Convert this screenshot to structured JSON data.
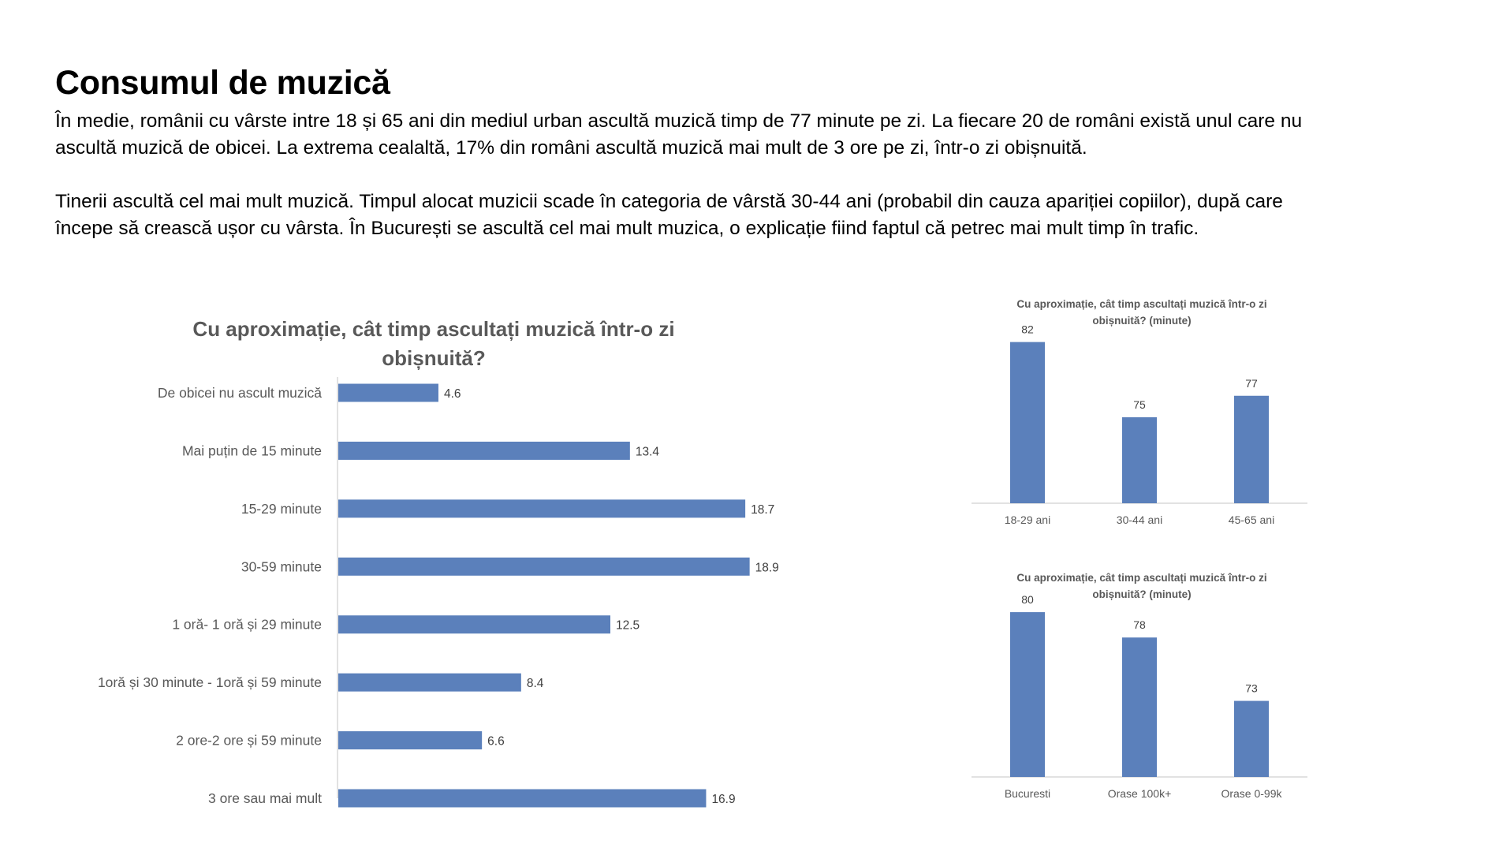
{
  "page": {
    "title": "Consumul de muzică",
    "paragraphs": [
      [
        "În medie, românii cu vârste intre 18 și 65 ani din mediul urban ascultă muzică timp de 77 minute pe zi. La fiecare 20 de români există unul care nu",
        "ascultă muzică de obicei. La extrema cealaltă, 17% din români ascultă muzică mai mult de 3 ore pe zi, într-o zi obișnuită."
      ],
      [
        "Tinerii ascultă cel mai mult muzică. Timpul alocat muzicii scade în categoria de vârstă 30-44 ani (probabil din cauza apariției copiilor), după care",
        "începe să crească ușor cu vârsta. În București se ascultă cel mai mult muzica, o explicație fiind faptul că petrec mai mult timp în trafic."
      ]
    ]
  },
  "colors": {
    "bar": "#5b80bb",
    "axis": "#d9d9d9",
    "title": "#595959"
  },
  "chart_data": [
    {
      "id": "distribution",
      "type": "bar",
      "orientation": "horizontal",
      "title_lines": [
        "Cu aproximație, cât timp ascultați muzică într-o zi",
        "obișnuită?"
      ],
      "categories": [
        "De obicei nu ascult muzică",
        "Mai puțin de 15 minute",
        "15-29 minute",
        "30-59 minute",
        "1 oră- 1 oră și 29 minute",
        "1oră și 30 minute - 1oră și 59 minute",
        "2 ore-2 ore și 59 minute",
        "3 ore sau mai mult"
      ],
      "values": [
        4.6,
        13.4,
        18.7,
        18.9,
        12.5,
        8.4,
        6.6,
        16.9
      ],
      "value_labels": [
        "4.6",
        "13.4",
        "18.7",
        "18.9",
        "12.5",
        "8.4",
        "6.6",
        "16.9"
      ],
      "xlim": [
        0,
        20
      ],
      "grid": false,
      "legend": "none"
    },
    {
      "id": "by-age",
      "type": "bar",
      "orientation": "vertical",
      "title_lines": [
        "Cu aproximație, cât timp ascultați muzică într-o zi",
        "obișnuită? (minute)"
      ],
      "categories": [
        "18-29 ani",
        "30-44 ani",
        "45-65 ani"
      ],
      "values": [
        82,
        75,
        77
      ],
      "value_labels": [
        "82",
        "75",
        "77"
      ],
      "ylim": [
        67,
        83
      ],
      "grid": false,
      "legend": "none"
    },
    {
      "id": "by-locality",
      "type": "bar",
      "orientation": "vertical",
      "title_lines": [
        "Cu aproximație, cât timp ascultați muzică într-o zi",
        "obișnuită? (minute)"
      ],
      "categories": [
        "Bucuresti",
        "Orase 100k+",
        "Orase 0-99k"
      ],
      "values": [
        80,
        78,
        73
      ],
      "value_labels": [
        "80",
        "78",
        "73"
      ],
      "ylim": [
        67,
        81
      ],
      "grid": false,
      "legend": "none"
    }
  ]
}
